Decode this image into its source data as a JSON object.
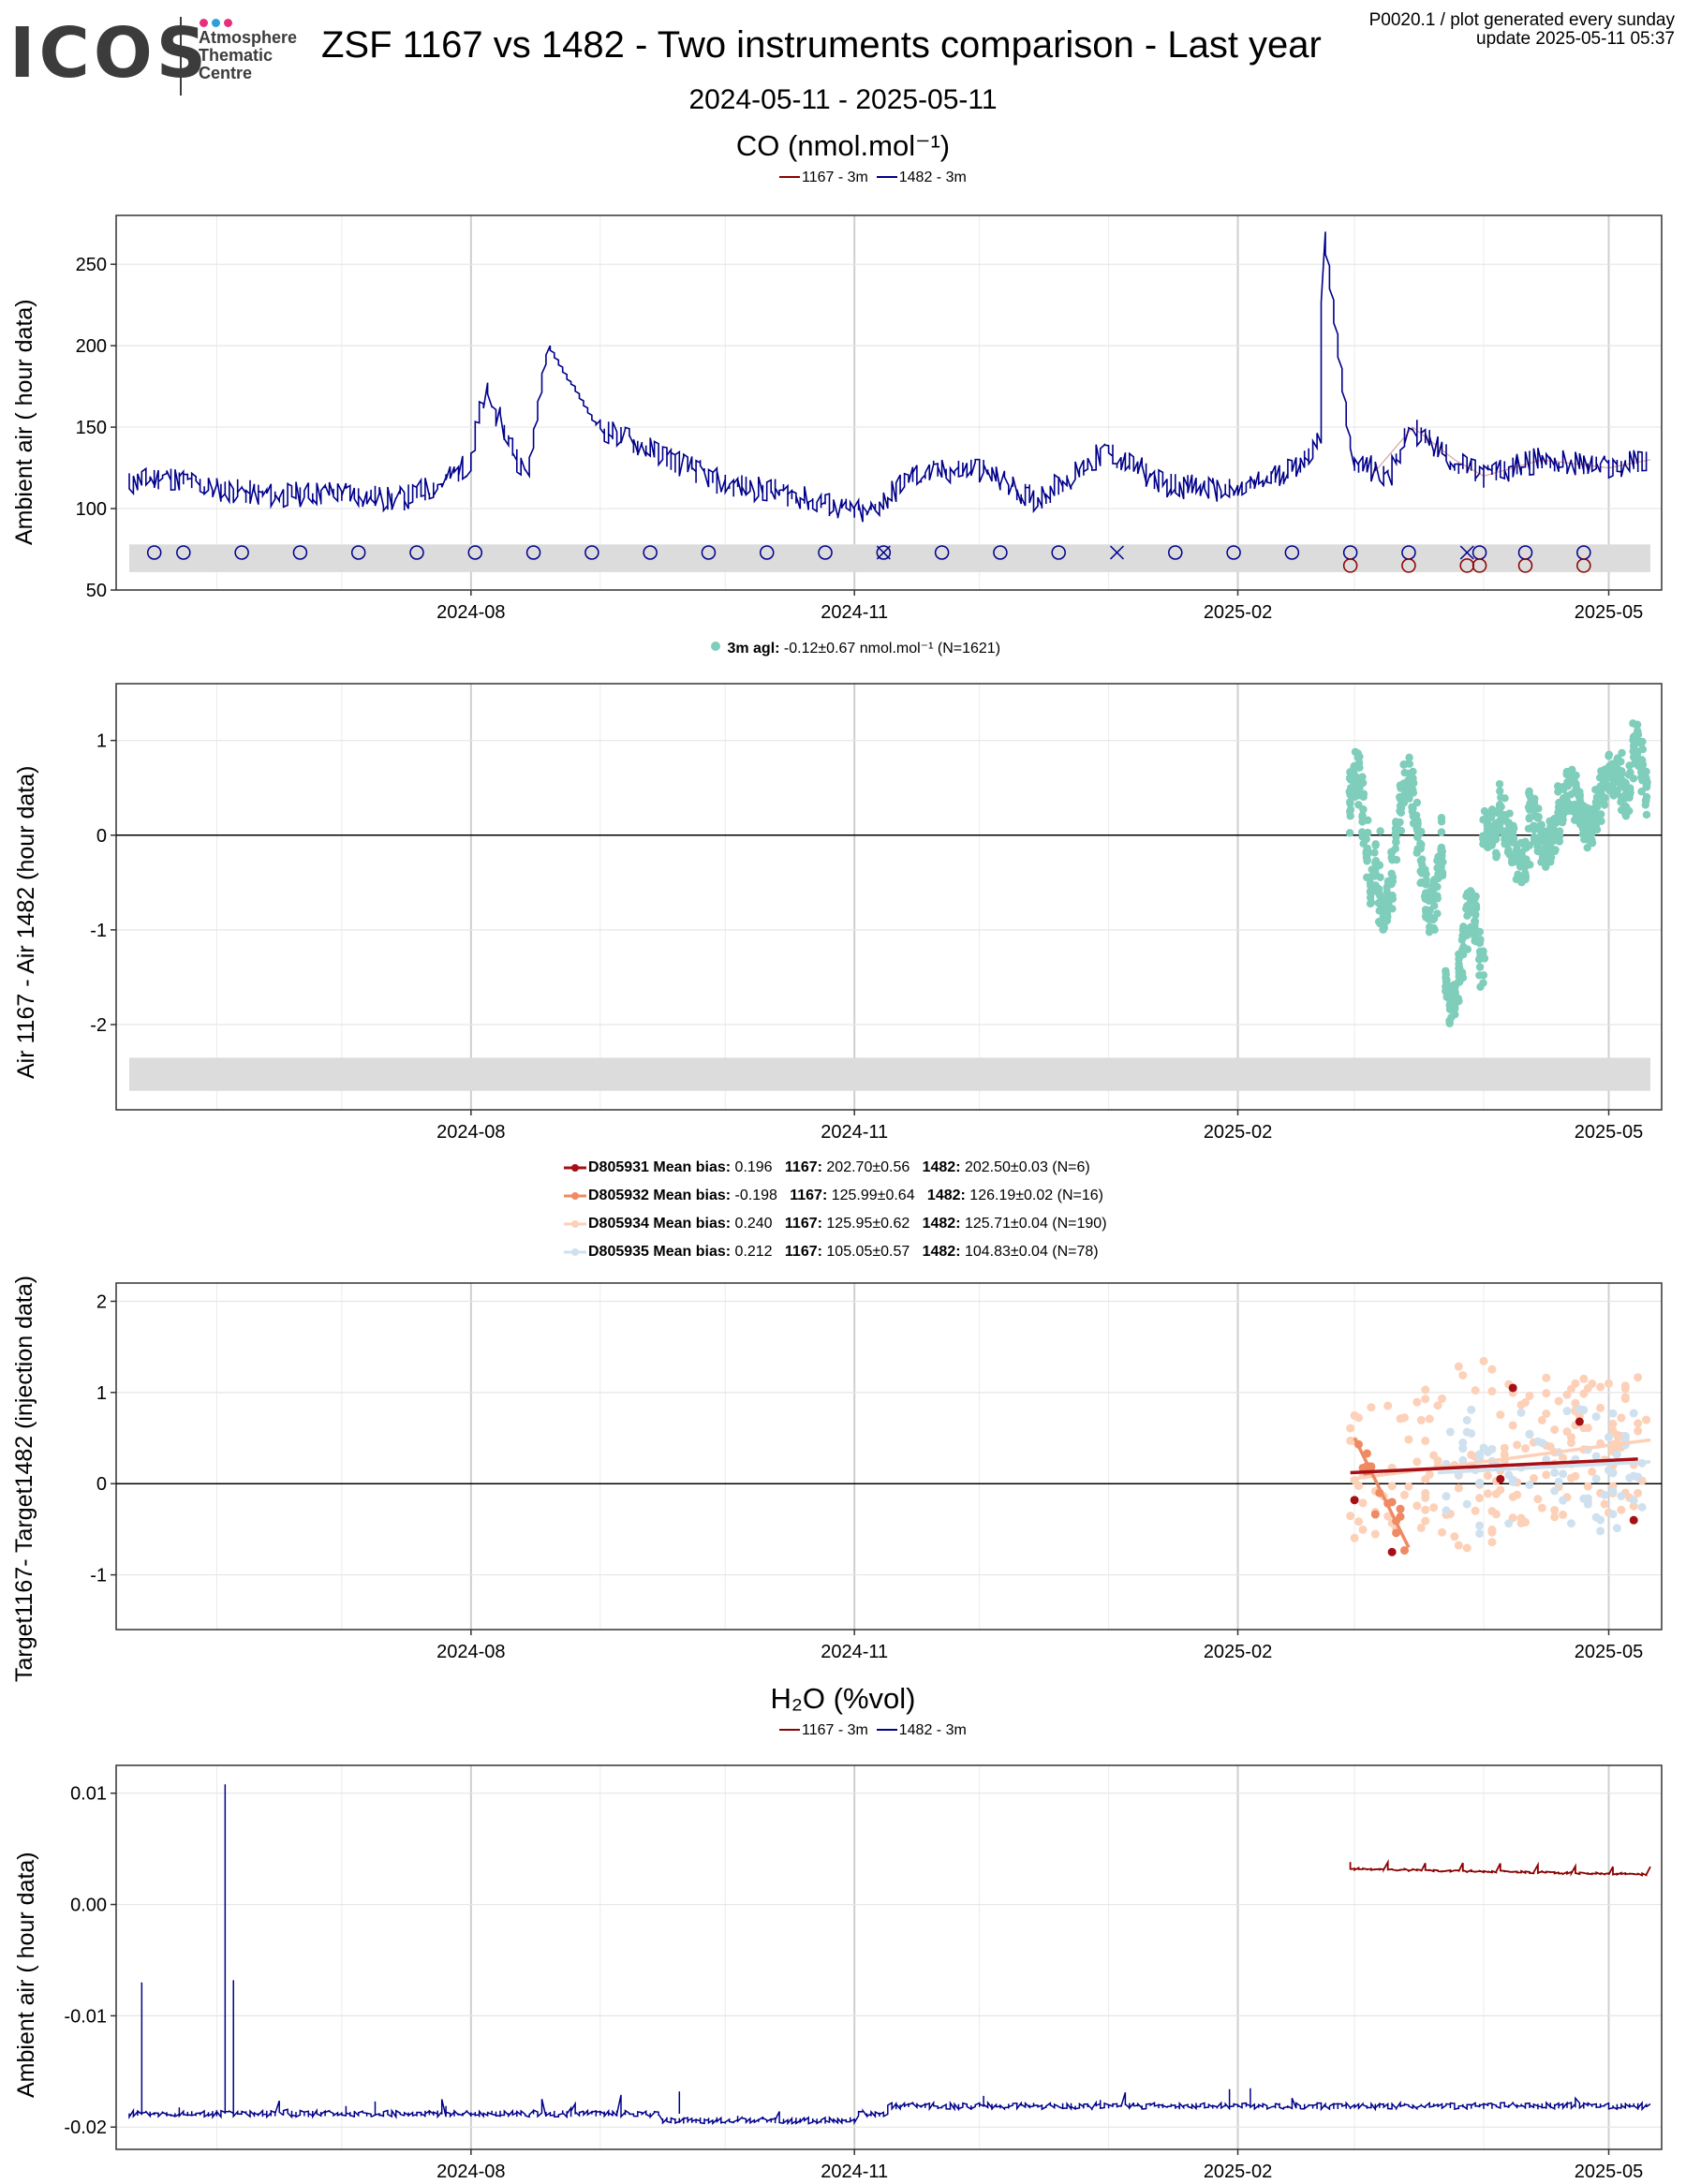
{
  "header": {
    "logo": "ICOS",
    "logo_sub": [
      "Atmosphere",
      "Thematic",
      "Centre"
    ],
    "title": "ZSF 1167 vs 1482 - Two instruments comparison - Last year",
    "date_range": "2024-05-11 - 2025-05-11",
    "plot_id": "P0020.1 / plot generated every sunday",
    "update": "update  2025-05-11 05:37"
  },
  "colors": {
    "s1167": "#8b0000",
    "s1482": "#00008b",
    "diff": "#7fcdbb",
    "D805931": "#a50f15",
    "D805932": "#ef8a62",
    "D805934": "#fdd0b8",
    "D805935": "#cfe1ef"
  },
  "x_axis": {
    "ticks": [
      "2024-08",
      "2024-11",
      "2025-02",
      "2025-05"
    ],
    "start": "2024-05-11",
    "end": "2025-05-11"
  },
  "chart_data": [
    {
      "id": "co",
      "type": "line",
      "title": "CO (nmol.mol⁻¹)",
      "ylabel": "Ambient air ( hour data)",
      "ylim": [
        50,
        280
      ],
      "yticks": [
        50,
        100,
        150,
        200,
        250
      ],
      "legend": [
        "1167 - 3m",
        "1482 - 3m"
      ],
      "series": [
        {
          "name": "1482 - 3m",
          "x": [
            "2024-05-11",
            "2024-05-20",
            "2024-06-01",
            "2024-06-15",
            "2024-07-01",
            "2024-07-15",
            "2024-07-25",
            "2024-08-01",
            "2024-08-05",
            "2024-08-15",
            "2024-08-20",
            "2024-09-01",
            "2024-09-15",
            "2024-10-01",
            "2024-10-15",
            "2024-11-01",
            "2024-11-05",
            "2024-11-15",
            "2024-12-01",
            "2024-12-15",
            "2025-01-01",
            "2025-01-15",
            "2025-02-01",
            "2025-02-15",
            "2025-02-21",
            "2025-02-22",
            "2025-03-01",
            "2025-03-10",
            "2025-03-15",
            "2025-03-25",
            "2025-04-01",
            "2025-04-15",
            "2025-05-01",
            "2025-05-11"
          ],
          "values": [
            115,
            120,
            112,
            108,
            110,
            105,
            115,
            128,
            170,
            120,
            200,
            150,
            135,
            115,
            110,
            98,
            97,
            120,
            125,
            105,
            135,
            115,
            110,
            125,
            140,
            270,
            130,
            120,
            150,
            130,
            120,
            130,
            125,
            130
          ]
        },
        {
          "name": "1167 - 3m",
          "x": [
            "2025-03-05",
            "2025-03-15",
            "2025-03-25",
            "2025-04-01",
            "2025-04-15",
            "2025-05-01",
            "2025-05-11"
          ],
          "values": [
            120,
            150,
            130,
            120,
            130,
            125,
            130
          ]
        }
      ],
      "calib_1482": [
        "2024-05-17",
        "2024-05-24",
        "2024-06-07",
        "2024-06-21",
        "2024-07-05",
        "2024-07-19",
        "2024-08-02",
        "2024-08-16",
        "2024-08-30",
        "2024-09-13",
        "2024-09-27",
        "2024-10-11",
        "2024-10-25",
        "2024-11-08",
        "2024-11-22",
        "2024-12-06",
        "2024-12-20",
        "2025-01-17",
        "2025-01-31",
        "2025-02-14",
        "2025-02-28",
        "2025-03-14",
        "2025-03-31",
        "2025-04-11",
        "2025-04-25"
      ],
      "calib_x_1482": [
        "2024-11-08",
        "2025-01-03",
        "2025-03-28"
      ],
      "calib_1167": [
        "2025-02-28",
        "2025-03-14",
        "2025-03-28",
        "2025-03-31",
        "2025-04-11",
        "2025-04-25"
      ]
    },
    {
      "id": "diff",
      "type": "scatter",
      "ylabel": "Air 1167 - Air 1482 (hour data)",
      "ylim": [
        -2.9,
        1.6
      ],
      "yticks": [
        -2,
        -1,
        0,
        1
      ],
      "legend": {
        "label": "3m agl:",
        "text": "-0.12±0.67 nmol.mol⁻¹   (N=1621)"
      },
      "points_x_range": [
        "2025-02-28",
        "2025-05-11"
      ]
    },
    {
      "id": "target",
      "type": "scatter",
      "ylabel": "Target1167- Target1482 (injection data)",
      "ylim": [
        -1.6,
        2.2
      ],
      "yticks": [
        -1,
        0,
        1,
        2
      ],
      "legend": [
        {
          "name": "D805931",
          "bias": "0.196",
          "v1167": "202.70±0.56",
          "v1482": "202.50±0.03 (N=6)"
        },
        {
          "name": "D805932",
          "bias": "-0.198",
          "v1167": "125.99±0.64",
          "v1482": "126.19±0.02 (N=16)"
        },
        {
          "name": "D805934",
          "bias": "0.240",
          "v1167": "125.95±0.62",
          "v1482": "125.71±0.04 (N=190)"
        },
        {
          "name": "D805935",
          "bias": "0.212",
          "v1167": "105.05±0.57",
          "v1482": "104.83±0.04 (N=78)"
        }
      ],
      "labels": {
        "mean_bias": "Mean bias:",
        "i1167": "1167:",
        "i1482": "1482:"
      }
    },
    {
      "id": "h2o",
      "type": "line",
      "title": "H₂O (%vol)",
      "ylabel": "Ambient air ( hour data)",
      "ylim": [
        -0.022,
        0.0125
      ],
      "yticks": [
        -0.02,
        -0.01,
        0.0,
        0.01
      ],
      "ytick_labels": [
        "-0.02",
        "-0.01",
        "0.00",
        "0.01"
      ],
      "legend": [
        "1167 - 3m",
        "1482 - 3m"
      ],
      "series": [
        {
          "name": "1482 - 3m",
          "approx_level": -0.0188
        },
        {
          "name": "1167 - 3m",
          "approx_level": 0.0029
        }
      ]
    }
  ]
}
